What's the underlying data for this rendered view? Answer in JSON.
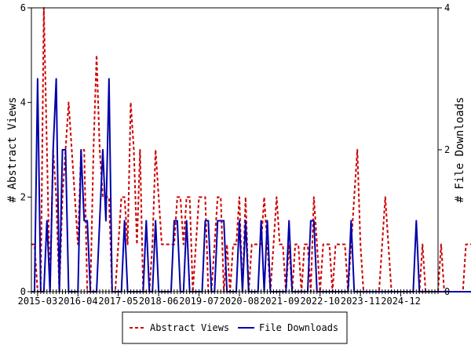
{
  "chart_data": {
    "type": "line",
    "ylabel": "# Abstract Views",
    "y2label": "# File Downloads",
    "ylim": [
      0,
      6
    ],
    "y2lim": [
      0,
      4
    ],
    "yticks": [
      "0",
      "2",
      "4",
      "6"
    ],
    "y2ticks": [
      "0",
      "2",
      "4"
    ],
    "x_start": "2015-01",
    "x_end": "2025-12",
    "xtick_labels": [
      "2015-03",
      "2016-04",
      "2017-05",
      "2018-06",
      "2019-07",
      "2020-08",
      "2021-09",
      "2022-10",
      "2023-11",
      "2024-12"
    ],
    "legend_position": "bottom",
    "grid": false,
    "series": [
      {
        "name": "Abstract Views",
        "axis": "left",
        "color": "#cc0000",
        "style": "dashed",
        "values": [
          1,
          1,
          0,
          0,
          6,
          3,
          0,
          3,
          2,
          0,
          2,
          3,
          4,
          3,
          2,
          1,
          3,
          3,
          0,
          0,
          3,
          5,
          3,
          2,
          2,
          2,
          0,
          0,
          1,
          2,
          2,
          1,
          4,
          3,
          1,
          3,
          0,
          0,
          0,
          1,
          3,
          2,
          1,
          1,
          1,
          1,
          1,
          2,
          2,
          1,
          2,
          2,
          0,
          1,
          2,
          2,
          2,
          0,
          0,
          1,
          2,
          2,
          0,
          1,
          0,
          1,
          1,
          2,
          0,
          2,
          0,
          1,
          1,
          1,
          1,
          2,
          1,
          0,
          1,
          2,
          1,
          1,
          0,
          1,
          0,
          1,
          1,
          0,
          1,
          1,
          0,
          2,
          1,
          0,
          1,
          1,
          1,
          0,
          1,
          1,
          1,
          1,
          0,
          1,
          2,
          3,
          1,
          0,
          0,
          0,
          0,
          0,
          0,
          1,
          2,
          1,
          0,
          0,
          0,
          0,
          0,
          0,
          0,
          0,
          0,
          0,
          1,
          0,
          0,
          0,
          0,
          0,
          1,
          0,
          0,
          0,
          0,
          0,
          0,
          0,
          1,
          1,
          1,
          2,
          1,
          0,
          0,
          0,
          0,
          0,
          0,
          0,
          0
        ]
      },
      {
        "name": "File Downloads",
        "axis": "right",
        "color": "#0000aa",
        "style": "solid",
        "values": [
          0,
          0,
          3,
          0,
          0,
          1,
          0,
          2,
          3,
          0,
          2,
          2,
          0,
          0,
          0,
          0,
          2,
          1,
          1,
          0,
          0,
          0,
          1,
          2,
          1,
          3,
          0,
          0,
          0,
          0,
          1,
          0,
          0,
          0,
          0,
          0,
          0,
          1,
          0,
          0,
          1,
          0,
          0,
          0,
          0,
          0,
          1,
          1,
          0,
          0,
          1,
          0,
          0,
          0,
          0,
          0,
          1,
          1,
          0,
          0,
          1,
          1,
          1,
          0,
          0,
          0,
          0,
          1,
          0,
          1,
          0,
          0,
          0,
          0,
          1,
          0,
          1,
          0,
          0,
          0,
          0,
          0,
          0,
          1,
          0,
          0,
          0,
          0,
          0,
          0,
          1,
          1,
          0,
          0,
          0,
          0,
          0,
          0,
          0,
          0,
          0,
          0,
          0,
          1,
          0,
          0,
          0,
          0,
          0,
          0,
          0,
          0,
          0,
          0,
          0,
          0,
          0,
          0,
          0,
          0,
          0,
          0,
          0,
          0,
          1,
          0,
          0,
          0,
          0,
          0,
          0,
          0,
          0,
          0,
          0,
          0,
          0,
          0,
          0,
          0,
          0,
          0,
          0,
          0,
          0,
          0,
          0,
          0,
          0,
          0,
          0,
          0,
          0
        ]
      }
    ]
  }
}
